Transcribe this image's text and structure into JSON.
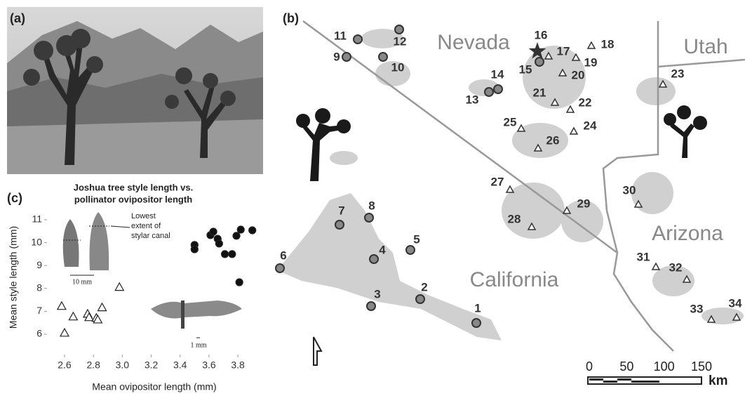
{
  "panel_labels": [
    "(a)",
    "(b)",
    "(c)"
  ],
  "chart_data": {
    "type": "scatter",
    "title": [
      "Joshua tree style length vs.",
      "pollinator ovipositor length"
    ],
    "x_label": "Mean ovipositor length (mm)",
    "y_label": "Mean style length (mm)",
    "xlim": [
      2.5,
      3.95
    ],
    "xticks": [
      2.6,
      2.8,
      {
        "value": 3.0,
        "label": "3.0"
      },
      3.2,
      3.4,
      3.6,
      3.8
    ],
    "ylim": [
      5.8,
      11.2
    ],
    "yticks": [
      6,
      7,
      8,
      9,
      10,
      11
    ],
    "series": [
      {
        "marker": "triangle",
        "color": "#ffffff",
        "x": [
          2.58,
          2.6,
          2.66,
          2.76,
          2.77,
          2.82,
          2.83,
          2.86,
          2.98
        ],
        "values": [
          7.23,
          6.06,
          6.77,
          6.89,
          6.74,
          6.71,
          6.64,
          7.17,
          8.06
        ]
      },
      {
        "marker": "circle",
        "color": "#111111",
        "x": [
          3.5,
          3.5,
          3.61,
          3.63,
          3.66,
          3.67,
          3.71,
          3.76,
          3.79,
          3.82,
          3.9,
          3.81
        ],
        "values": [
          9.9,
          9.71,
          10.33,
          10.48,
          10.17,
          9.96,
          9.5,
          9.5,
          10.3,
          10.57,
          10.54,
          8.27
        ]
      }
    ],
    "annotations": {
      "canal": [
        "Lowest",
        "extent of",
        "stylar canal"
      ],
      "scale_seed": "10 mm",
      "scale_moth": "1 mm"
    }
  },
  "map": {
    "regions": [
      "Nevada",
      "Utah",
      "California",
      "Arizona"
    ],
    "sites": [
      {
        "label": "1",
        "marker": "circle"
      },
      {
        "label": "2",
        "marker": "circle"
      },
      {
        "label": "3",
        "marker": "circle"
      },
      {
        "label": "4",
        "marker": "circle"
      },
      {
        "label": "5",
        "marker": "circle"
      },
      {
        "label": "6",
        "marker": "circle"
      },
      {
        "label": "7",
        "marker": "circle"
      },
      {
        "label": "8",
        "marker": "circle"
      },
      {
        "label": "9",
        "marker": "circle"
      },
      {
        "label": "10",
        "marker": "circle"
      },
      {
        "label": "11",
        "marker": "circle"
      },
      {
        "label": "12",
        "marker": "circle"
      },
      {
        "label": "13",
        "marker": "circle"
      },
      {
        "label": "14",
        "marker": "circle"
      },
      {
        "label": "15",
        "marker": "circle"
      },
      {
        "label": "16",
        "marker": "star"
      },
      {
        "label": "17",
        "marker": "triangle"
      },
      {
        "label": "18",
        "marker": "triangle"
      },
      {
        "label": "19",
        "marker": "triangle"
      },
      {
        "label": "20",
        "marker": "triangle"
      },
      {
        "label": "21",
        "marker": "triangle"
      },
      {
        "label": "22",
        "marker": "triangle"
      },
      {
        "label": "23",
        "marker": "triangle"
      },
      {
        "label": "24",
        "marker": "triangle"
      },
      {
        "label": "25",
        "marker": "triangle"
      },
      {
        "label": "26",
        "marker": "triangle"
      },
      {
        "label": "27",
        "marker": "triangle"
      },
      {
        "label": "28",
        "marker": "triangle"
      },
      {
        "label": "29",
        "marker": "triangle"
      },
      {
        "label": "30",
        "marker": "triangle"
      },
      {
        "label": "31",
        "marker": "triangle"
      },
      {
        "label": "32",
        "marker": "triangle"
      },
      {
        "label": "33",
        "marker": "triangle"
      },
      {
        "label": "34",
        "marker": "triangle"
      }
    ],
    "scale": {
      "ticks": [
        0,
        50,
        100,
        150
      ],
      "unit": "km"
    }
  }
}
